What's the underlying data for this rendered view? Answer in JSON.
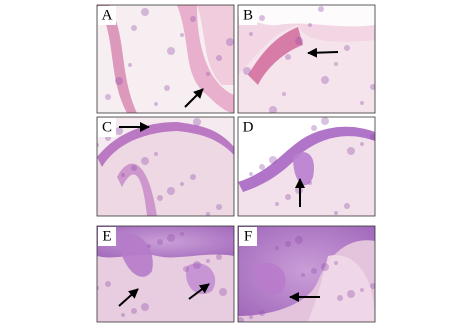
{
  "panels": [
    {
      "label": "A"
    },
    {
      "label": "B"
    },
    {
      "label": "C"
    },
    {
      "label": "D"
    },
    {
      "label": "E"
    },
    {
      "label": "F"
    }
  ]
}
